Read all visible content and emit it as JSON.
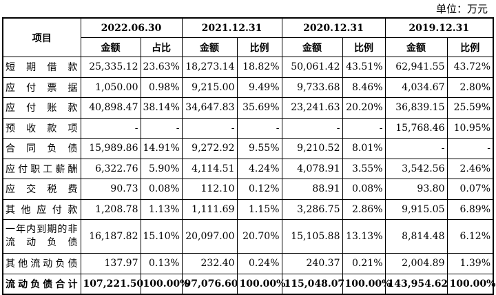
{
  "unit_label": "单位：万元",
  "header": {
    "item": "项目",
    "periods": [
      "2022.06.30",
      "2021.12.31",
      "2020.12.31",
      "2019.12.31"
    ],
    "sub": [
      [
        "金额",
        "占比"
      ],
      [
        "金额",
        "比例"
      ],
      [
        "金额",
        "比例"
      ],
      [
        "金额",
        "比例"
      ]
    ]
  },
  "rows": [
    {
      "label": "短期借款",
      "cells": [
        "25,335.12",
        "23.63%",
        "18,273.14",
        "18.82%",
        "50,061.42",
        "43.51%",
        "62,941.55",
        "43.72%"
      ]
    },
    {
      "label": "应付票据",
      "cells": [
        "1,050.00",
        "0.98%",
        "9,215.00",
        "9.49%",
        "9,733.68",
        "8.46%",
        "4,034.67",
        "2.80%"
      ]
    },
    {
      "label": "应付账款",
      "cells": [
        "40,898.47",
        "38.14%",
        "34,647.83",
        "35.69%",
        "23,241.63",
        "20.20%",
        "36,839.15",
        "25.59%"
      ]
    },
    {
      "label": "预收款项",
      "cells": [
        "-",
        "-",
        "-",
        "-",
        "-",
        "-",
        "15,768.46",
        "10.95%"
      ]
    },
    {
      "label": "合同负债",
      "cells": [
        "15,989.86",
        "14.91%",
        "9,272.92",
        "9.55%",
        "9,210.52",
        "8.01%",
        "-",
        "-"
      ]
    },
    {
      "label": "应付职工薪酬",
      "cells": [
        "6,322.76",
        "5.90%",
        "4,114.51",
        "4.24%",
        "4,078.91",
        "3.55%",
        "3,542.56",
        "2.46%"
      ]
    },
    {
      "label": "应交税费",
      "cells": [
        "90.73",
        "0.08%",
        "112.10",
        "0.12%",
        "88.91",
        "0.08%",
        "93.80",
        "0.07%"
      ]
    },
    {
      "label": "其他应付款",
      "cells": [
        "1,208.78",
        "1.13%",
        "1,111.69",
        "1.15%",
        "3,286.75",
        "2.86%",
        "9,915.05",
        "6.89%"
      ]
    },
    {
      "label": "一年内到期的非流动负债",
      "cells": [
        "16,187.82",
        "15.10%",
        "20,097.00",
        "20.70%",
        "15,105.88",
        "13.13%",
        "8,814.48",
        "6.12%"
      ]
    },
    {
      "label": "其他流动负债",
      "cells": [
        "137.97",
        "0.13%",
        "232.40",
        "0.24%",
        "240.37",
        "0.21%",
        "2,004.89",
        "1.39%"
      ]
    },
    {
      "label": "流动负债合计",
      "cells": [
        "107,221.50",
        "100.00%",
        "97,076.60",
        "100.00%",
        "115,048.07",
        "100.00%",
        "143,954.62",
        "100.00%"
      ]
    }
  ]
}
